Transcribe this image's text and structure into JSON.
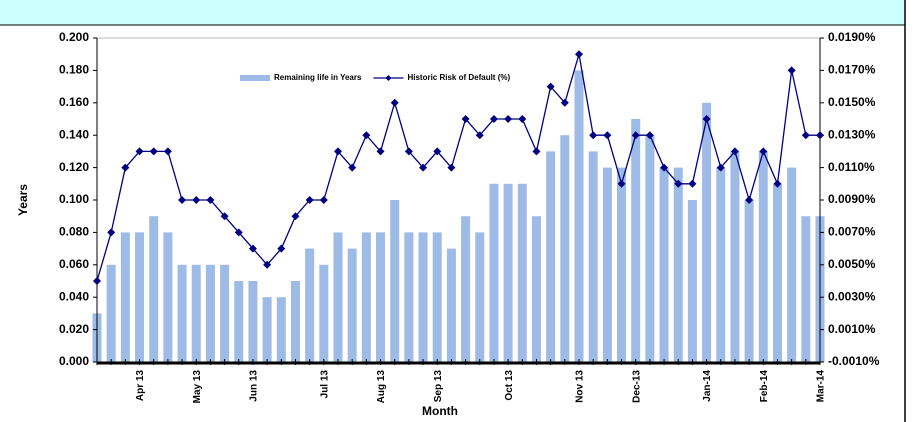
{
  "chart_data": {
    "type": "bar_line",
    "xlabel": "Month",
    "ylabel": "Years",
    "categories": [
      null,
      null,
      null,
      "Apr 13",
      null,
      null,
      null,
      "May 13",
      null,
      null,
      null,
      "Jun 13",
      null,
      null,
      null,
      null,
      "Jul 13",
      null,
      null,
      null,
      "Aug 13",
      null,
      null,
      null,
      "Sep 13",
      null,
      null,
      null,
      null,
      "Oct 13",
      null,
      null,
      null,
      null,
      "Nov 13",
      null,
      null,
      null,
      "Dec-13",
      null,
      null,
      null,
      null,
      "Jan-14",
      null,
      null,
      null,
      "Feb-14",
      null,
      null,
      null,
      "Mar-14"
    ],
    "series": [
      {
        "name": "Remaining life in Years",
        "color": "#9dbbe6",
        "kind": "bar",
        "values": [
          0.03,
          0.06,
          0.08,
          0.08,
          0.09,
          0.08,
          0.06,
          0.06,
          0.06,
          0.06,
          0.05,
          0.05,
          0.04,
          0.04,
          0.05,
          0.07,
          0.06,
          0.08,
          0.07,
          0.08,
          0.08,
          0.1,
          0.08,
          0.08,
          0.08,
          0.07,
          0.09,
          0.08,
          0.11,
          0.11,
          0.11,
          0.09,
          0.13,
          0.14,
          0.18,
          0.13,
          0.12,
          0.12,
          0.15,
          0.14,
          0.12,
          0.12,
          0.1,
          0.16,
          0.12,
          0.13,
          0.1,
          0.13,
          0.11,
          0.12,
          0.09,
          0.09
        ]
      },
      {
        "name": "Historic Risk of Default (%)",
        "color": "#000080",
        "kind": "line",
        "axis": "y2",
        "values": [
          0.004,
          0.007,
          0.011,
          0.012,
          0.012,
          0.012,
          0.009,
          0.009,
          0.009,
          0.008,
          0.007,
          0.006,
          0.005,
          0.006,
          0.008,
          0.009,
          0.009,
          0.012,
          0.011,
          0.013,
          0.012,
          0.015,
          0.012,
          0.011,
          0.012,
          0.011,
          0.014,
          0.013,
          0.014,
          0.014,
          0.014,
          0.012,
          0.016,
          0.015,
          0.018,
          0.013,
          0.013,
          0.01,
          0.013,
          0.013,
          0.011,
          0.01,
          0.01,
          0.014,
          0.011,
          0.012,
          0.009,
          0.012,
          0.01,
          0.017,
          0.013,
          0.013
        ]
      }
    ],
    "ylim": [
      0,
      0.2
    ],
    "yticks": [
      {
        "value": 0,
        "label": "0.000"
      },
      {
        "value": 0.02,
        "label": "0.020"
      },
      {
        "value": 0.04,
        "label": "0.040"
      },
      {
        "value": 0.06,
        "label": "0.060"
      },
      {
        "value": 0.08,
        "label": "0.080"
      },
      {
        "value": 0.1,
        "label": "0.100"
      },
      {
        "value": 0.12,
        "label": "0.120"
      },
      {
        "value": 0.14,
        "label": "0.140"
      },
      {
        "value": 0.16,
        "label": "0.160"
      },
      {
        "value": 0.18,
        "label": "0.180"
      },
      {
        "value": 0.2,
        "label": "0.200"
      }
    ],
    "y2lim": [
      -0.001,
      0.019
    ],
    "y2ticks": [
      {
        "value": -0.001,
        "label": "-0.0010%"
      },
      {
        "value": 0.001,
        "label": "0.0010%"
      },
      {
        "value": 0.003,
        "label": "0.0030%"
      },
      {
        "value": 0.005,
        "label": "0.0050%"
      },
      {
        "value": 0.007,
        "label": "0.0070%"
      },
      {
        "value": 0.009,
        "label": "0.0090%"
      },
      {
        "value": 0.011,
        "label": "0.0110%"
      },
      {
        "value": 0.013,
        "label": "0.0130%"
      },
      {
        "value": 0.015,
        "label": "0.0150%"
      },
      {
        "value": 0.017,
        "label": "0.0170%"
      },
      {
        "value": 0.019,
        "label": "0.0190%"
      }
    ]
  }
}
